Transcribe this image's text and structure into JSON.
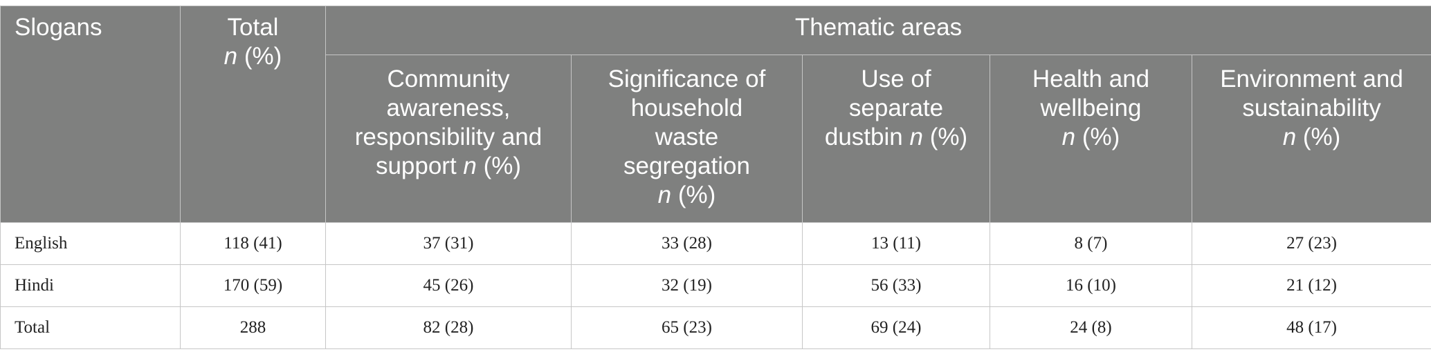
{
  "header": {
    "slogans": "Slogans",
    "total_title": "Total",
    "total_unit": "n",
    "total_unit_suffix": "(%)",
    "group_title": "Thematic areas",
    "areas": [
      {
        "line1": "Community",
        "line2": "awareness,",
        "line3": "responsibility and",
        "line4": "support",
        "unit": "n",
        "suffix": "(%)"
      },
      {
        "line1": "Significance of",
        "line2": "household",
        "line3": "waste",
        "line4": "segregation",
        "unit": "n",
        "suffix": "(%)"
      },
      {
        "line1": "Use of",
        "line2": "separate",
        "line3": "dustbin",
        "unit": "n",
        "suffix": "(%)"
      },
      {
        "line1": "Health and",
        "line2": "wellbeing",
        "unit": "n",
        "suffix": "(%)"
      },
      {
        "line1": "Environment and",
        "line2": "sustainability",
        "unit": "n",
        "suffix": "(%)"
      }
    ]
  },
  "rows": [
    {
      "label": "English",
      "total": "118 (41)",
      "cells": [
        "37 (31)",
        "33 (28)",
        "13 (11)",
        "8 (7)",
        "27 (23)"
      ]
    },
    {
      "label": "Hindi",
      "total": "170 (59)",
      "cells": [
        "45 (26)",
        "32 (19)",
        "56 (33)",
        "16 (10)",
        "21 (12)"
      ]
    },
    {
      "label": "Total",
      "total": "288",
      "cells": [
        "82 (28)",
        "65 (23)",
        "69 (24)",
        "24 (8)",
        "48 (17)"
      ]
    }
  ]
}
